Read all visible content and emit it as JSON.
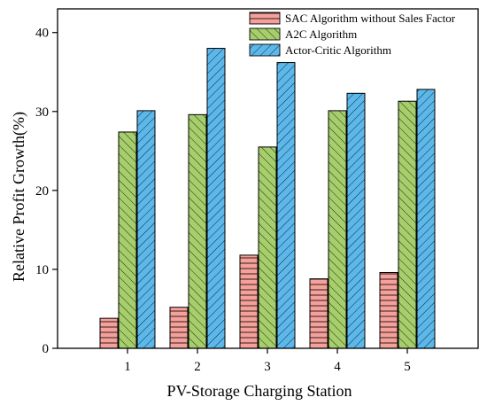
{
  "chart_data": {
    "type": "bar",
    "title": "",
    "xlabel": "PV-Storage Charging Station",
    "ylabel": "Relative Profit Growth(%)",
    "categories": [
      "1",
      "2",
      "3",
      "4",
      "5"
    ],
    "ylim": [
      0,
      43
    ],
    "yticks": [
      "0",
      "10",
      "20",
      "30",
      "40"
    ],
    "grid": false,
    "legend_position": "top-right",
    "series": [
      {
        "name": "SAC Algorithm without Sales Factor",
        "values": [
          3.8,
          5.2,
          11.8,
          8.8,
          9.6
        ],
        "color": "#f5a09a",
        "hatch": "horizontal"
      },
      {
        "name": "A2C Algorithm",
        "values": [
          27.4,
          29.6,
          25.5,
          30.1,
          31.3
        ],
        "color": "#a6cf6c",
        "hatch": "diagonal-right"
      },
      {
        "name": "Actor-Critic Algorithm",
        "values": [
          30.1,
          38.0,
          36.2,
          32.3,
          32.8
        ],
        "color": "#5cb8ea",
        "hatch": "diagonal-left"
      }
    ]
  }
}
